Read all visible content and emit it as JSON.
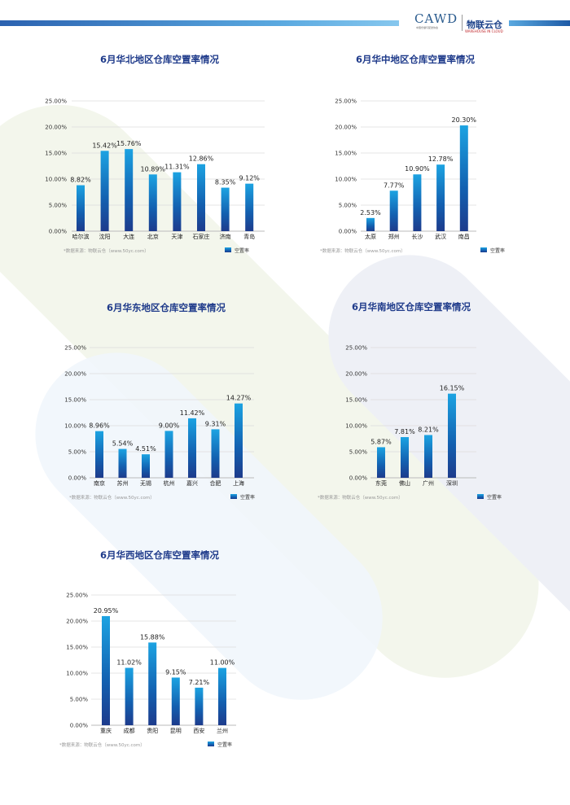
{
  "header": {
    "logo_text": "CAWD",
    "logo_subtitle": "中国仓储与配送协会",
    "brand_cn": "物联云仓",
    "brand_en": "WAREHOUSE IN CLOUD",
    "accent_color": "#1f6fb8"
  },
  "chart_data": [
    {
      "type": "bar",
      "title": "6月华北地区仓库空置率情况",
      "categories": [
        "哈尔滨",
        "沈阳",
        "大连",
        "北京",
        "天津",
        "石家庄",
        "济南",
        "青岛"
      ],
      "values": [
        8.82,
        15.42,
        15.76,
        10.89,
        11.31,
        12.86,
        8.35,
        9.12
      ],
      "value_labels": [
        "8.82%",
        "15.42%",
        "15.76%",
        "10.89%",
        "11.31%",
        "12.86%",
        "8.35%",
        "9.12%"
      ],
      "yticks": [
        "0.00%",
        "5.00%",
        "10.00%",
        "15.00%",
        "20.00%",
        "25.00%"
      ],
      "ylim": [
        0,
        25
      ],
      "grid": true,
      "legend": "空置率",
      "legend_position": "bottom-right",
      "source": "*数据来源：物联云仓（www.50yc.com）"
    },
    {
      "type": "bar",
      "title": "6月华中地区仓库空置率情况",
      "categories": [
        "太原",
        "郑州",
        "长沙",
        "武汉",
        "南昌"
      ],
      "values": [
        2.53,
        7.77,
        10.9,
        12.78,
        20.3
      ],
      "value_labels": [
        "2.53%",
        "7.77%",
        "10.90%",
        "12.78%",
        "20.30%"
      ],
      "yticks": [
        "0.00%",
        "5.00%",
        "10.00%",
        "15.00%",
        "20.00%",
        "25.00%"
      ],
      "ylim": [
        0,
        25
      ],
      "grid": true,
      "legend": "空置率",
      "legend_position": "bottom-right",
      "source": "*数据来源：物联云仓（www.50yc.com）"
    },
    {
      "type": "bar",
      "title": "6月华东地区仓库空置率情况",
      "categories": [
        "南京",
        "苏州",
        "无锡",
        "杭州",
        "嘉兴",
        "合肥",
        "上海"
      ],
      "values": [
        8.96,
        5.54,
        4.51,
        9.0,
        11.42,
        9.31,
        14.27
      ],
      "value_labels": [
        "8.96%",
        "5.54%",
        "4.51%",
        "9.00%",
        "11.42%",
        "9.31%",
        "14.27%"
      ],
      "yticks": [
        "0.00%",
        "5.00%",
        "10.00%",
        "15.00%",
        "20.00%",
        "25.00%"
      ],
      "ylim": [
        0,
        25
      ],
      "grid": true,
      "legend": "空置率",
      "legend_position": "bottom-right",
      "source": "*数据来源：物联云仓（www.50yc.com）"
    },
    {
      "type": "bar",
      "title": "6月华南地区仓库空置率情况",
      "categories": [
        "东莞",
        "佛山",
        "广州",
        "深圳"
      ],
      "values": [
        5.87,
        7.81,
        8.21,
        16.15
      ],
      "value_labels": [
        "5.87%",
        "7.81%",
        "8.21%",
        "16.15%"
      ],
      "yticks": [
        "0.00%",
        "5.00%",
        "10.00%",
        "15.00%",
        "20.00%",
        "25.00%"
      ],
      "ylim": [
        0,
        25
      ],
      "grid": true,
      "legend": "空置率",
      "legend_position": "bottom-right",
      "source": "*数据来源：物联云仓（www.50yc.com）"
    },
    {
      "type": "bar",
      "title": "6月华西地区仓库空置率情况",
      "categories": [
        "重庆",
        "成都",
        "贵阳",
        "昆明",
        "西安",
        "兰州"
      ],
      "values": [
        20.95,
        11.02,
        15.88,
        9.15,
        7.21,
        11.0
      ],
      "value_labels": [
        "20.95%",
        "11.02%",
        "15.88%",
        "9.15%",
        "7.21%",
        "11.00%"
      ],
      "yticks": [
        "0.00%",
        "5.00%",
        "10.00%",
        "15.00%",
        "20.00%",
        "25.00%"
      ],
      "ylim": [
        0,
        25
      ],
      "grid": true,
      "legend": "空置率",
      "legend_position": "bottom-right",
      "source": "*数据来源：物联云仓（www.50yc.com）"
    }
  ]
}
